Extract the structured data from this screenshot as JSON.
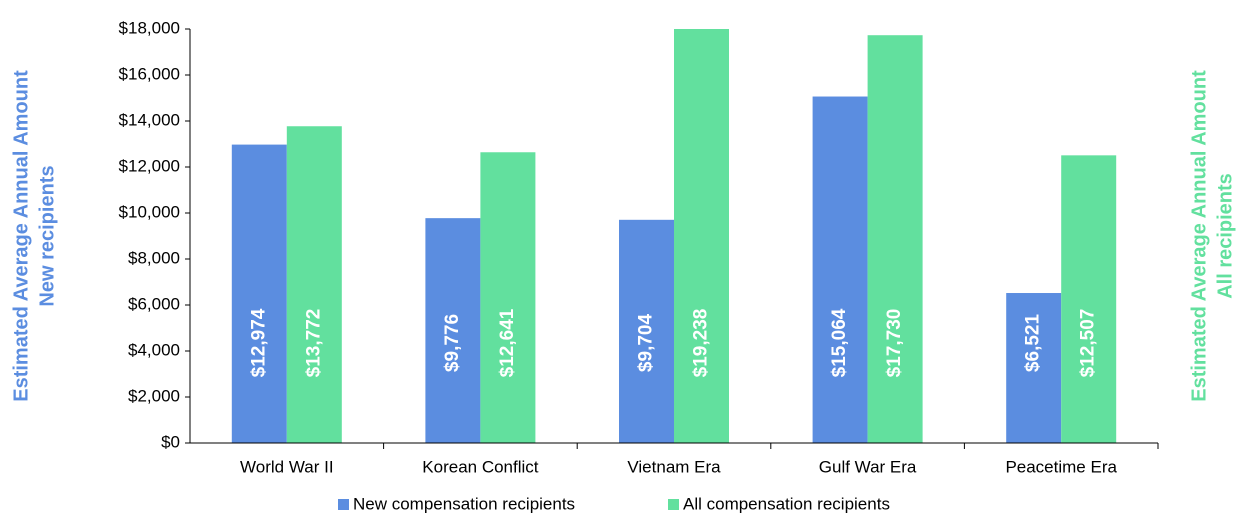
{
  "chart_data": {
    "type": "bar",
    "y_label": [
      "Estimated Average Annual Amount",
      "New recipients"
    ],
    "y2_label": [
      "Estimated Average Annual Amount",
      "All recipients"
    ],
    "categories": [
      "World War II",
      "Korean Conflict",
      "Vietnam Era",
      "Gulf War Era",
      "Peacetime Era"
    ],
    "series": [
      {
        "name": "New compensation recipients",
        "color": "#5b8de0",
        "values": [
          12974,
          9776,
          9704,
          15064,
          6521
        ],
        "value_labels": [
          "$12,974",
          "$9,776",
          "$9,704",
          "$15,064",
          "$6,521"
        ]
      },
      {
        "name": "All compensation recipients",
        "color": "#62e09e",
        "values": [
          13772,
          12641,
          19238,
          17730,
          12507
        ],
        "value_labels": [
          "$13,772",
          "$12,641",
          "$19,238",
          "$17,730",
          "$12,507"
        ]
      }
    ],
    "ylim": [
      0,
      18000
    ],
    "yticks": [
      {
        "value": 0,
        "label": "$0"
      },
      {
        "value": 2000,
        "label": "$2,000"
      },
      {
        "value": 4000,
        "label": "$4,000"
      },
      {
        "value": 6000,
        "label": "$6,000"
      },
      {
        "value": 8000,
        "label": "$8,000"
      },
      {
        "value": 10000,
        "label": "$10,000"
      },
      {
        "value": 12000,
        "label": "$12,000"
      },
      {
        "value": 14000,
        "label": "$14,000"
      },
      {
        "value": 16000,
        "label": "$16,000"
      },
      {
        "value": 18000,
        "label": "$18,000"
      }
    ],
    "legend": "bottom"
  }
}
